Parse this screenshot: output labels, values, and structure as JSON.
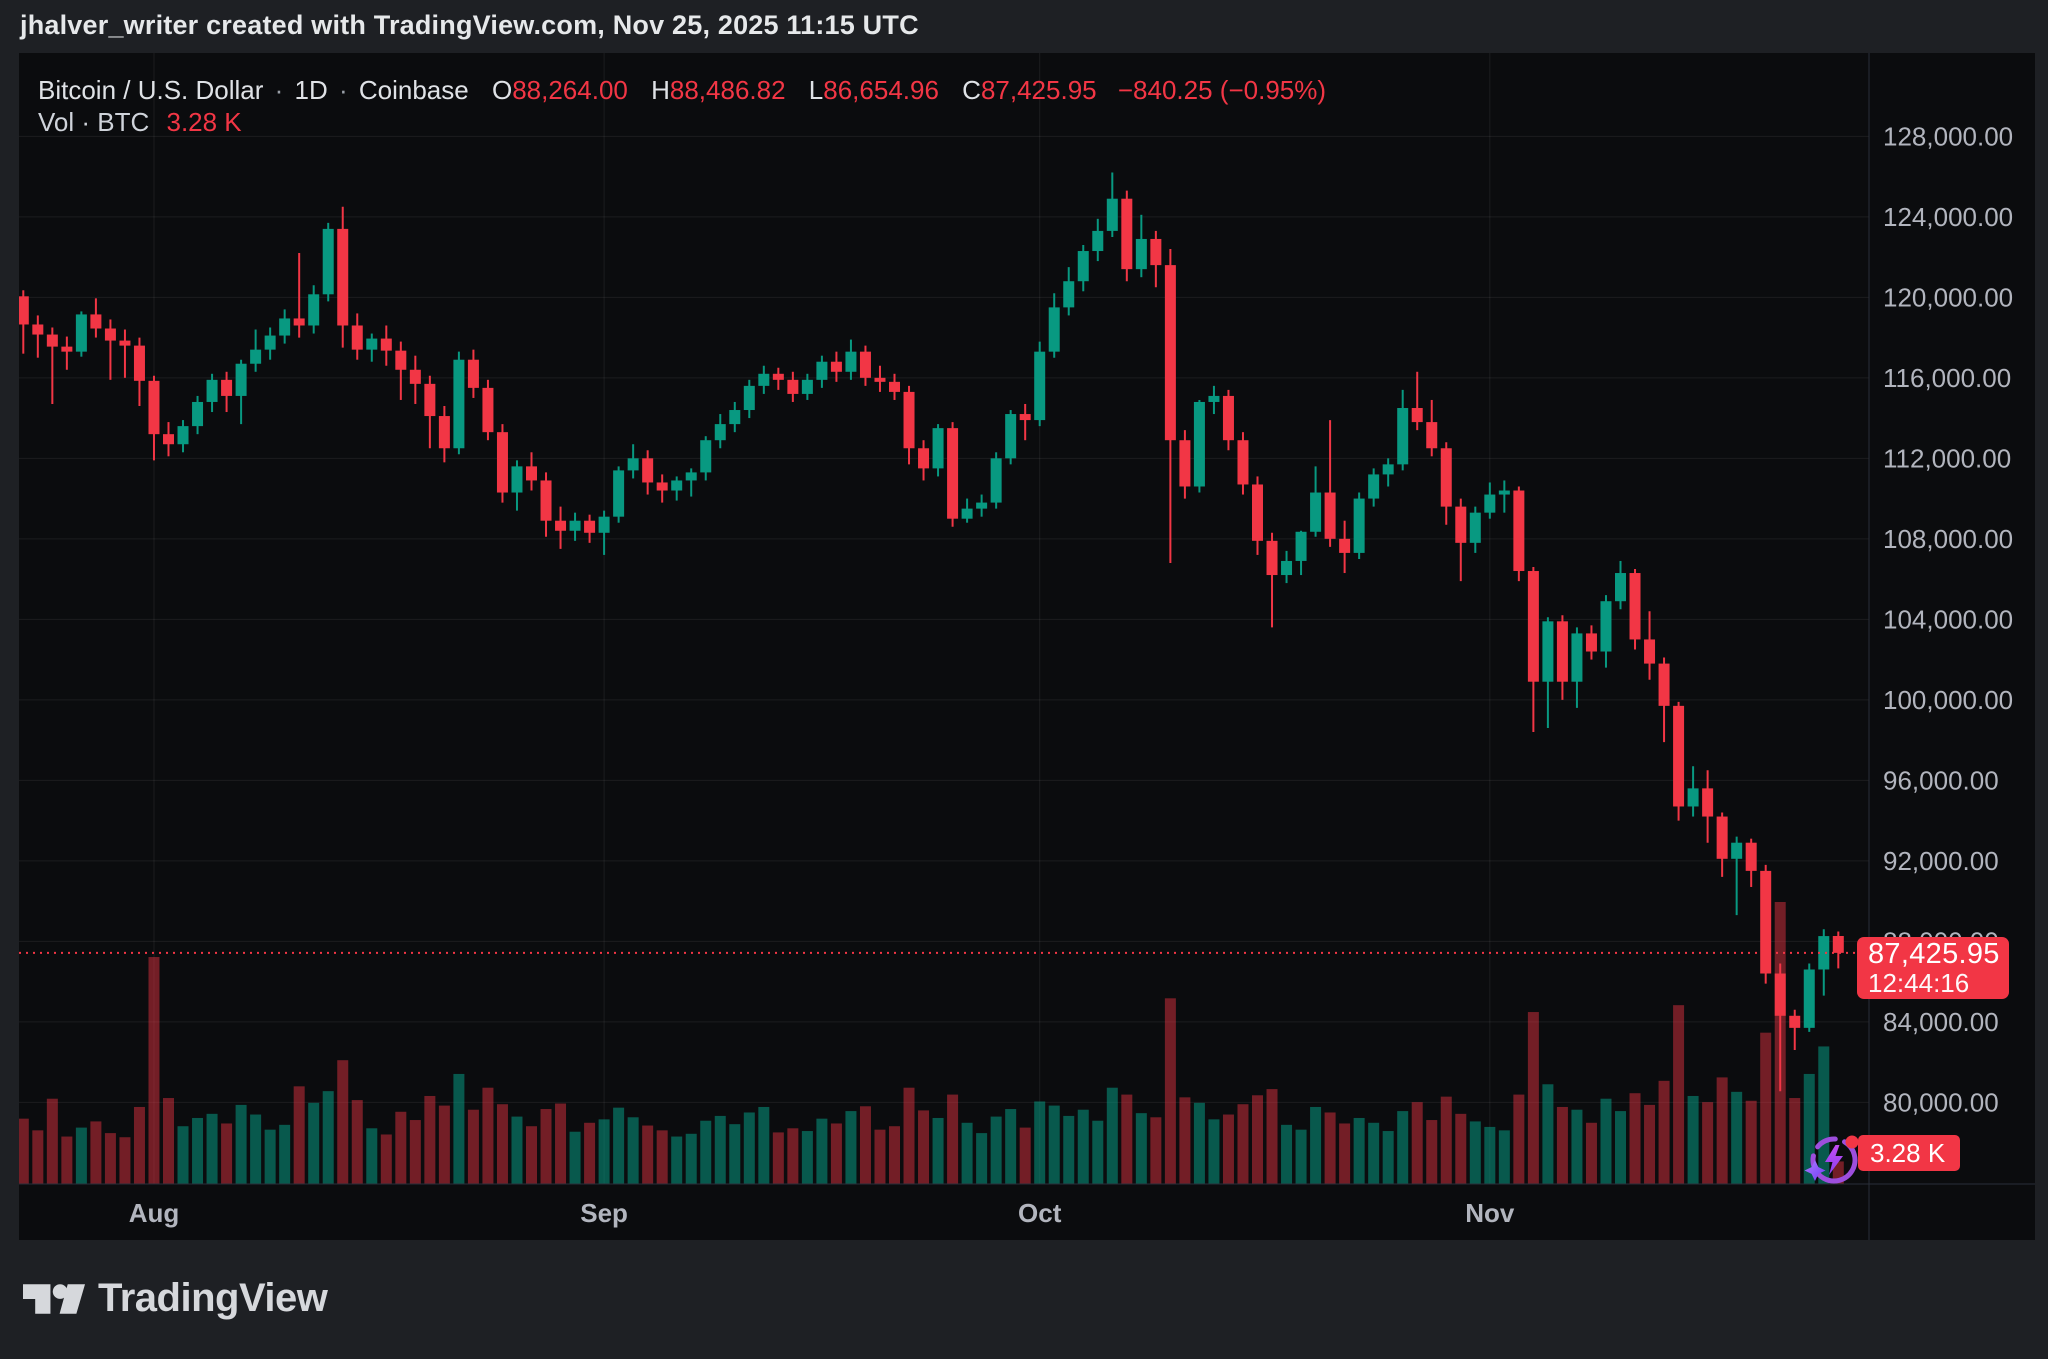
{
  "attribution": "jhalver_writer created with TradingView.com, Nov 25, 2025 11:15 UTC",
  "legend": {
    "title": "Bitcoin / U.S. Dollar",
    "interval": "1D",
    "exchange": "Coinbase",
    "o_key": "O",
    "o": "88,264.00",
    "h_key": "H",
    "h": "88,486.82",
    "l_key": "L",
    "l": "86,654.96",
    "c_key": "C",
    "c": "87,425.95",
    "change": "−840.25 (−0.95%)",
    "vol_label": "Vol · BTC",
    "vol_value": "3.28 K"
  },
  "price_badge": {
    "price": "87,425.95",
    "countdown": "12:44:16"
  },
  "volume_badge": {
    "value": "3.28 K"
  },
  "logo": {
    "text": "TradingView"
  },
  "icons": {
    "ai_sparkle_icon": "circular-arrow with lightning bolt, sparkle star and red notification dot"
  },
  "colors": {
    "up": "#089981",
    "down": "#f23645",
    "accent_badge": "#f23645",
    "axis_text": "#b2b5be",
    "grid": "rgba(255,255,255,0.07)",
    "separator": "#2a2e39",
    "chart_bg": "#0b0c0e",
    "page_bg": "#1e2024",
    "icon_purple": "#9d4edd"
  },
  "chart_data": {
    "type": "candlestick",
    "title": "Bitcoin / U.S. Dollar",
    "exchange": "Coinbase",
    "interval": "1D",
    "start_date": "2025-07-23",
    "end_date": "2025-11-25",
    "unit": "thousand USD per candle value, volume in thousand BTC",
    "legend_position": "top-left",
    "grid": true,
    "ylim_kusd": [
      75.9,
      132.14
    ],
    "current_day": {
      "open": 88264.0,
      "high": 88486.82,
      "low": 86654.96,
      "close": 87425.95,
      "change": -840.25,
      "change_pct": -0.95,
      "volume_btc_k": 3.28,
      "countdown": "12:44:16"
    },
    "price_ticks": [
      {
        "value": 128000,
        "label": "128,000.00"
      },
      {
        "value": 124000,
        "label": "124,000.00"
      },
      {
        "value": 120000,
        "label": "120,000.00"
      },
      {
        "value": 116000,
        "label": "116,000.00"
      },
      {
        "value": 112000,
        "label": "112,000.00"
      },
      {
        "value": 108000,
        "label": "108,000.00"
      },
      {
        "value": 104000,
        "label": "104,000.00"
      },
      {
        "value": 100000,
        "label": "100,000.00"
      },
      {
        "value": 96000,
        "label": "96,000.00"
      },
      {
        "value": 92000,
        "label": "92,000.00"
      },
      {
        "value": 88000,
        "label": "88,000.00"
      },
      {
        "value": 84000,
        "label": "84,000.00"
      },
      {
        "value": 80000,
        "label": "80,000.00"
      }
    ],
    "time_ticks": [
      {
        "label": "Aug",
        "candle_index": 9
      },
      {
        "label": "Sep",
        "candle_index": 40
      },
      {
        "label": "Oct",
        "candle_index": 70
      },
      {
        "label": "Nov",
        "candle_index": 101
      }
    ],
    "last_price_line": 87.426,
    "candles_ohlcv_k": [
      [
        120.05,
        120.35,
        117.2,
        118.65,
        9.5
      ],
      [
        118.65,
        119.1,
        117.0,
        118.15,
        7.8
      ],
      [
        118.15,
        118.5,
        114.7,
        117.55,
        12.4
      ],
      [
        117.55,
        118.05,
        116.4,
        117.3,
        6.9
      ],
      [
        117.3,
        119.3,
        117.05,
        119.15,
        8.2
      ],
      [
        119.15,
        119.95,
        118.0,
        118.45,
        9.1
      ],
      [
        118.45,
        118.9,
        115.9,
        117.85,
        7.4
      ],
      [
        117.85,
        118.4,
        116.0,
        117.6,
        6.8
      ],
      [
        117.6,
        118.0,
        114.6,
        115.85,
        11.2
      ],
      [
        115.85,
        116.1,
        111.9,
        113.2,
        33
      ],
      [
        113.2,
        113.8,
        112.1,
        112.7,
        12.5
      ],
      [
        112.7,
        113.9,
        112.3,
        113.6,
        8.4
      ],
      [
        113.6,
        115.1,
        113.2,
        114.8,
        9.6
      ],
      [
        114.8,
        116.2,
        114.3,
        115.9,
        10.2
      ],
      [
        115.9,
        116.3,
        114.3,
        115.1,
        8.8
      ],
      [
        115.1,
        116.9,
        113.7,
        116.7,
        11.5
      ],
      [
        116.7,
        118.4,
        116.3,
        117.4,
        10.1
      ],
      [
        117.4,
        118.5,
        116.9,
        118.1,
        7.9
      ],
      [
        118.1,
        119.4,
        117.7,
        118.95,
        8.6
      ],
      [
        118.95,
        122.2,
        118.0,
        118.6,
        14.2
      ],
      [
        118.6,
        120.6,
        118.2,
        120.15,
        11.8
      ],
      [
        120.15,
        123.7,
        119.8,
        123.4,
        13.5
      ],
      [
        123.4,
        124.5,
        117.5,
        118.6,
        18
      ],
      [
        118.6,
        119.2,
        116.9,
        117.4,
        12.2
      ],
      [
        117.4,
        118.2,
        116.8,
        117.95,
        8.1
      ],
      [
        117.95,
        118.6,
        116.6,
        117.35,
        7.2
      ],
      [
        117.35,
        117.8,
        114.9,
        116.4,
        10.5
      ],
      [
        116.4,
        117.1,
        114.7,
        115.7,
        9.3
      ],
      [
        115.7,
        116.1,
        112.5,
        114.1,
        12.8
      ],
      [
        114.1,
        114.6,
        111.8,
        112.5,
        11.4
      ],
      [
        112.5,
        117.3,
        112.2,
        116.9,
        16
      ],
      [
        116.9,
        117.4,
        115.0,
        115.5,
        10.8
      ],
      [
        115.5,
        115.9,
        112.9,
        113.3,
        14
      ],
      [
        113.3,
        113.7,
        109.8,
        110.3,
        11.6
      ],
      [
        110.3,
        111.9,
        109.4,
        111.6,
        9.8
      ],
      [
        111.6,
        112.3,
        110.4,
        110.9,
        8.4
      ],
      [
        110.9,
        111.3,
        108.1,
        108.9,
        10.9
      ],
      [
        108.9,
        109.6,
        107.5,
        108.4,
        11.7
      ],
      [
        108.4,
        109.3,
        107.9,
        108.9,
        7.6
      ],
      [
        108.9,
        109.2,
        107.8,
        108.3,
        8.9
      ],
      [
        108.3,
        109.4,
        107.2,
        109.1,
        9.4
      ],
      [
        109.1,
        111.6,
        108.8,
        111.4,
        11.1
      ],
      [
        111.4,
        112.7,
        111.0,
        112.0,
        9.7
      ],
      [
        112.0,
        112.4,
        110.2,
        110.8,
        8.5
      ],
      [
        110.8,
        111.2,
        109.8,
        110.4,
        7.8
      ],
      [
        110.4,
        111.1,
        109.9,
        110.9,
        6.9
      ],
      [
        110.9,
        111.5,
        110.1,
        111.3,
        7.3
      ],
      [
        111.3,
        113.1,
        110.9,
        112.9,
        9.2
      ],
      [
        112.9,
        114.2,
        112.5,
        113.7,
        9.9
      ],
      [
        113.7,
        114.8,
        113.3,
        114.4,
        8.7
      ],
      [
        114.4,
        115.9,
        114.0,
        115.6,
        10.4
      ],
      [
        115.6,
        116.6,
        115.2,
        116.2,
        11.2
      ],
      [
        116.2,
        116.5,
        115.4,
        115.9,
        7.5
      ],
      [
        115.9,
        116.3,
        114.8,
        115.2,
        8.1
      ],
      [
        115.2,
        116.2,
        114.9,
        115.9,
        7.7
      ],
      [
        115.9,
        117.1,
        115.5,
        116.8,
        9.5
      ],
      [
        116.8,
        117.3,
        115.8,
        116.3,
        8.8
      ],
      [
        116.3,
        117.9,
        115.9,
        117.3,
        10.6
      ],
      [
        117.3,
        117.6,
        115.6,
        116.0,
        11.3
      ],
      [
        116.0,
        116.6,
        115.3,
        115.8,
        7.9
      ],
      [
        115.8,
        116.2,
        114.9,
        115.3,
        8.4
      ],
      [
        115.3,
        115.6,
        111.7,
        112.5,
        14
      ],
      [
        112.5,
        112.9,
        110.9,
        111.5,
        10.7
      ],
      [
        111.5,
        113.7,
        111.1,
        113.5,
        9.6
      ],
      [
        113.5,
        113.8,
        108.6,
        109.0,
        13
      ],
      [
        109.0,
        110.0,
        108.8,
        109.5,
        8.9
      ],
      [
        109.5,
        110.2,
        109.1,
        109.8,
        7.4
      ],
      [
        109.8,
        112.3,
        109.5,
        112.0,
        9.8
      ],
      [
        112.0,
        114.4,
        111.7,
        114.2,
        10.9
      ],
      [
        114.2,
        114.7,
        112.9,
        113.9,
        8.2
      ],
      [
        113.9,
        117.8,
        113.6,
        117.3,
        12
      ],
      [
        117.3,
        120.2,
        117.0,
        119.5,
        11.4
      ],
      [
        119.5,
        121.5,
        119.1,
        120.8,
        9.9
      ],
      [
        120.8,
        122.6,
        120.3,
        122.3,
        10.8
      ],
      [
        122.3,
        123.9,
        121.8,
        123.3,
        9.2
      ],
      [
        123.3,
        126.2,
        123.0,
        124.9,
        14
      ],
      [
        124.9,
        125.3,
        120.8,
        121.4,
        13
      ],
      [
        121.4,
        124.1,
        121.0,
        122.9,
        10.3
      ],
      [
        122.9,
        123.3,
        120.5,
        121.6,
        9.7
      ],
      [
        121.6,
        122.4,
        106.8,
        112.9,
        27
      ],
      [
        112.9,
        113.4,
        110.0,
        110.6,
        12.6
      ],
      [
        110.6,
        114.9,
        110.3,
        114.8,
        11.8
      ],
      [
        114.8,
        115.6,
        114.2,
        115.1,
        9.4
      ],
      [
        115.1,
        115.4,
        112.4,
        112.9,
        10.1
      ],
      [
        112.9,
        113.3,
        110.2,
        110.7,
        11.6
      ],
      [
        110.7,
        111.1,
        107.2,
        107.9,
        12.9
      ],
      [
        107.9,
        108.3,
        103.6,
        106.2,
        13.8
      ],
      [
        106.2,
        107.4,
        105.8,
        106.9,
        8.6
      ],
      [
        106.9,
        108.4,
        106.2,
        108.35,
        7.9
      ],
      [
        108.35,
        111.6,
        108.1,
        110.3,
        11.2
      ],
      [
        110.3,
        113.9,
        107.6,
        108.0,
        10.4
      ],
      [
        108.0,
        108.9,
        106.3,
        107.3,
        8.8
      ],
      [
        107.3,
        110.3,
        107.0,
        110.0,
        9.6
      ],
      [
        110.0,
        111.5,
        109.6,
        111.2,
        8.9
      ],
      [
        111.2,
        112.0,
        110.6,
        111.7,
        7.7
      ],
      [
        111.7,
        115.4,
        111.4,
        114.5,
        10.6
      ],
      [
        114.5,
        116.3,
        113.4,
        113.8,
        11.9
      ],
      [
        113.8,
        114.9,
        112.1,
        112.5,
        9.3
      ],
      [
        112.5,
        112.8,
        108.7,
        109.6,
        12.7
      ],
      [
        109.6,
        110.0,
        105.9,
        107.8,
        10.2
      ],
      [
        107.8,
        109.6,
        107.3,
        109.3,
        9.1
      ],
      [
        109.3,
        110.8,
        109.0,
        110.2,
        8.3
      ],
      [
        110.2,
        110.9,
        109.3,
        110.4,
        7.8
      ],
      [
        110.4,
        110.6,
        105.9,
        106.4,
        13
      ],
      [
        106.4,
        106.6,
        98.4,
        100.9,
        25
      ],
      [
        100.9,
        104.1,
        98.6,
        103.9,
        14.5
      ],
      [
        103.9,
        104.2,
        100.0,
        100.9,
        11.2
      ],
      [
        100.9,
        103.6,
        99.6,
        103.3,
        10.8
      ],
      [
        103.3,
        103.7,
        102.0,
        102.4,
        8.9
      ],
      [
        102.4,
        105.2,
        101.6,
        104.9,
        12.4
      ],
      [
        104.9,
        106.9,
        104.5,
        106.3,
        10.6
      ],
      [
        106.3,
        106.5,
        102.5,
        103.0,
        13.2
      ],
      [
        103.0,
        104.4,
        101.0,
        101.8,
        11.5
      ],
      [
        101.8,
        102.1,
        97.9,
        99.7,
        15
      ],
      [
        99.7,
        99.9,
        94.0,
        94.7,
        26
      ],
      [
        94.7,
        96.7,
        94.2,
        95.6,
        12.8
      ],
      [
        95.6,
        96.5,
        92.9,
        94.2,
        11.9
      ],
      [
        94.2,
        94.4,
        91.2,
        92.1,
        15.5
      ],
      [
        92.1,
        93.2,
        89.3,
        92.9,
        13.4
      ],
      [
        92.9,
        93.1,
        90.7,
        91.5,
        12.1
      ],
      [
        91.5,
        91.8,
        85.9,
        86.4,
        22
      ],
      [
        86.4,
        86.9,
        80.55,
        84.3,
        41
      ],
      [
        84.3,
        84.6,
        82.6,
        83.7,
        12.5
      ],
      [
        83.7,
        86.9,
        83.5,
        86.6,
        16
      ],
      [
        86.6,
        88.6,
        85.3,
        88.26,
        20
      ],
      [
        88.264,
        88.487,
        86.655,
        87.426,
        3.28
      ]
    ]
  }
}
